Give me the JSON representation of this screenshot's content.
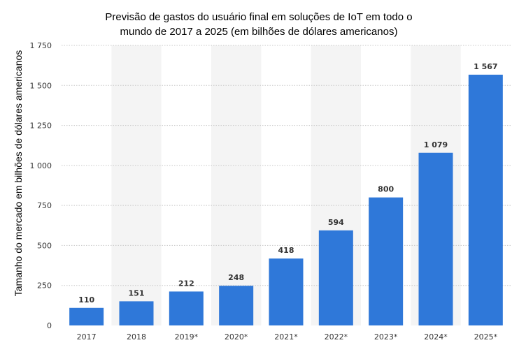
{
  "chart_data": {
    "type": "bar",
    "title_line1": "Previsão de gastos do usuário final em soluções de IoT  em todo o",
    "title_line2": "mundo de 2017 a 2025 (em bilhões de dólares americanos)",
    "ylabel": "Tamanho do mercado em bilhões de dólares americanos",
    "xlabel": "",
    "categories": [
      "2017",
      "2018",
      "2019*",
      "2020*",
      "2021*",
      "2022*",
      "2023*",
      "2024*",
      "2025*"
    ],
    "values": [
      110,
      151,
      212,
      248,
      418,
      594,
      800,
      1079,
      1567
    ],
    "value_labels": [
      "110",
      "151",
      "212",
      "248",
      "418",
      "594",
      "800",
      "1 079",
      "1 567"
    ],
    "ylim": [
      0,
      1750
    ],
    "yticks": [
      0,
      250,
      500,
      750,
      1000,
      1250,
      1500,
      1750
    ],
    "ytick_labels": [
      "0",
      "250",
      "500",
      "750",
      "1 000",
      "1 250",
      "1 500",
      "1 750"
    ],
    "grid": true,
    "bar_color": "#2f78d9",
    "band_color": "#f4f4f4",
    "grid_color": "#c8c8c8"
  }
}
